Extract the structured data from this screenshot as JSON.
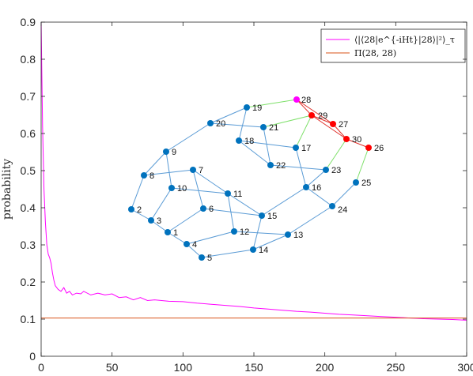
{
  "chart_data": {
    "type": "line",
    "title": "",
    "xlabel": "",
    "ylabel": "probability",
    "xlim": [
      0,
      300
    ],
    "ylim": [
      0,
      0.9
    ],
    "xticks": [
      0,
      50,
      100,
      150,
      200,
      250,
      300
    ],
    "yticks": [
      0,
      0.1,
      0.2,
      0.3,
      0.4,
      0.5,
      0.6,
      0.7,
      0.8,
      0.9
    ],
    "grid": false,
    "legend_location": "top-right",
    "series": [
      {
        "name": "⟨|⟨28|e^{-iHt}|28⟩|²⟩_τ",
        "color": "#ff00ff",
        "x": [
          0,
          1,
          2,
          3,
          4,
          5,
          6,
          7,
          8,
          9,
          10,
          12,
          14,
          16,
          18,
          20,
          22,
          25,
          28,
          30,
          35,
          40,
          45,
          50,
          55,
          60,
          65,
          70,
          75,
          80,
          90,
          100,
          110,
          120,
          130,
          140,
          150,
          160,
          170,
          180,
          190,
          200,
          210,
          220,
          230,
          240,
          250,
          260,
          270,
          280,
          290,
          300
        ],
        "y": [
          0.9,
          0.62,
          0.45,
          0.36,
          0.3,
          0.275,
          0.265,
          0.25,
          0.225,
          0.205,
          0.19,
          0.18,
          0.175,
          0.185,
          0.17,
          0.175,
          0.165,
          0.17,
          0.168,
          0.175,
          0.165,
          0.17,
          0.165,
          0.168,
          0.158,
          0.16,
          0.152,
          0.158,
          0.15,
          0.152,
          0.148,
          0.147,
          0.143,
          0.14,
          0.137,
          0.134,
          0.13,
          0.127,
          0.124,
          0.121,
          0.119,
          0.116,
          0.113,
          0.111,
          0.109,
          0.107,
          0.105,
          0.103,
          0.101,
          0.1,
          0.099,
          0.097
        ]
      },
      {
        "name": "Π(28, 28)",
        "color": "#d95319",
        "x": [
          0,
          300
        ],
        "y": [
          0.103,
          0.103
        ]
      }
    ],
    "inset_graph": {
      "type": "graph",
      "node_color": "#0072bd",
      "highlight_color": "#ff0000",
      "start_color": "#ff00ff",
      "nodes": [
        {
          "id": "1",
          "role": "normal"
        },
        {
          "id": "2",
          "role": "normal"
        },
        {
          "id": "3",
          "role": "normal"
        },
        {
          "id": "4",
          "role": "normal"
        },
        {
          "id": "5",
          "role": "normal"
        },
        {
          "id": "6",
          "role": "normal"
        },
        {
          "id": "7",
          "role": "normal"
        },
        {
          "id": "8",
          "role": "normal"
        },
        {
          "id": "9",
          "role": "normal"
        },
        {
          "id": "10",
          "role": "normal"
        },
        {
          "id": "11",
          "role": "normal"
        },
        {
          "id": "12",
          "role": "normal"
        },
        {
          "id": "13",
          "role": "normal"
        },
        {
          "id": "14",
          "role": "normal"
        },
        {
          "id": "15",
          "role": "normal"
        },
        {
          "id": "16",
          "role": "normal"
        },
        {
          "id": "17",
          "role": "normal"
        },
        {
          "id": "18",
          "role": "normal"
        },
        {
          "id": "19",
          "role": "normal"
        },
        {
          "id": "20",
          "role": "normal"
        },
        {
          "id": "21",
          "role": "normal"
        },
        {
          "id": "22",
          "role": "normal"
        },
        {
          "id": "23",
          "role": "normal"
        },
        {
          "id": "24",
          "role": "normal"
        },
        {
          "id": "25",
          "role": "normal"
        },
        {
          "id": "26",
          "role": "highlight"
        },
        {
          "id": "27",
          "role": "highlight"
        },
        {
          "id": "28",
          "role": "start"
        },
        {
          "id": "29",
          "role": "highlight"
        },
        {
          "id": "30",
          "role": "highlight"
        }
      ],
      "edges": [
        [
          "2",
          "8"
        ],
        [
          "2",
          "3"
        ],
        [
          "3",
          "1"
        ],
        [
          "3",
          "10"
        ],
        [
          "1",
          "4"
        ],
        [
          "1",
          "6"
        ],
        [
          "4",
          "5"
        ],
        [
          "4",
          "12"
        ],
        [
          "5",
          "14"
        ],
        [
          "14",
          "13"
        ],
        [
          "13",
          "12"
        ],
        [
          "12",
          "11"
        ],
        [
          "13",
          "24"
        ],
        [
          "6",
          "7"
        ],
        [
          "6",
          "15"
        ],
        [
          "7",
          "8"
        ],
        [
          "7",
          "11"
        ],
        [
          "8",
          "9"
        ],
        [
          "9",
          "10"
        ],
        [
          "9",
          "20"
        ],
        [
          "10",
          "11"
        ],
        [
          "11",
          "15"
        ],
        [
          "15",
          "16"
        ],
        [
          "15",
          "14"
        ],
        [
          "16",
          "24"
        ],
        [
          "16",
          "17"
        ],
        [
          "17",
          "18"
        ],
        [
          "18",
          "19"
        ],
        [
          "18",
          "22"
        ],
        [
          "19",
          "20"
        ],
        [
          "20",
          "21"
        ],
        [
          "21",
          "22"
        ],
        [
          "21",
          "29"
        ],
        [
          "19",
          "28"
        ],
        [
          "22",
          "23"
        ],
        [
          "23",
          "16"
        ],
        [
          "23",
          "30"
        ],
        [
          "24",
          "25"
        ],
        [
          "25",
          "26"
        ],
        [
          "17",
          "29"
        ],
        [
          "28",
          "29"
        ],
        [
          "29",
          "27"
        ],
        [
          "27",
          "30"
        ],
        [
          "30",
          "26"
        ],
        [
          "28",
          "27"
        ]
      ],
      "highlight_edges": [
        [
          "28",
          "29"
        ],
        [
          "29",
          "27"
        ],
        [
          "27",
          "30"
        ],
        [
          "30",
          "26"
        ],
        [
          "28",
          "27"
        ],
        [
          "29",
          "30"
        ]
      ],
      "green_edges": [
        [
          "19",
          "28"
        ],
        [
          "21",
          "29"
        ],
        [
          "17",
          "29"
        ],
        [
          "23",
          "30"
        ],
        [
          "25",
          "26"
        ]
      ]
    }
  }
}
